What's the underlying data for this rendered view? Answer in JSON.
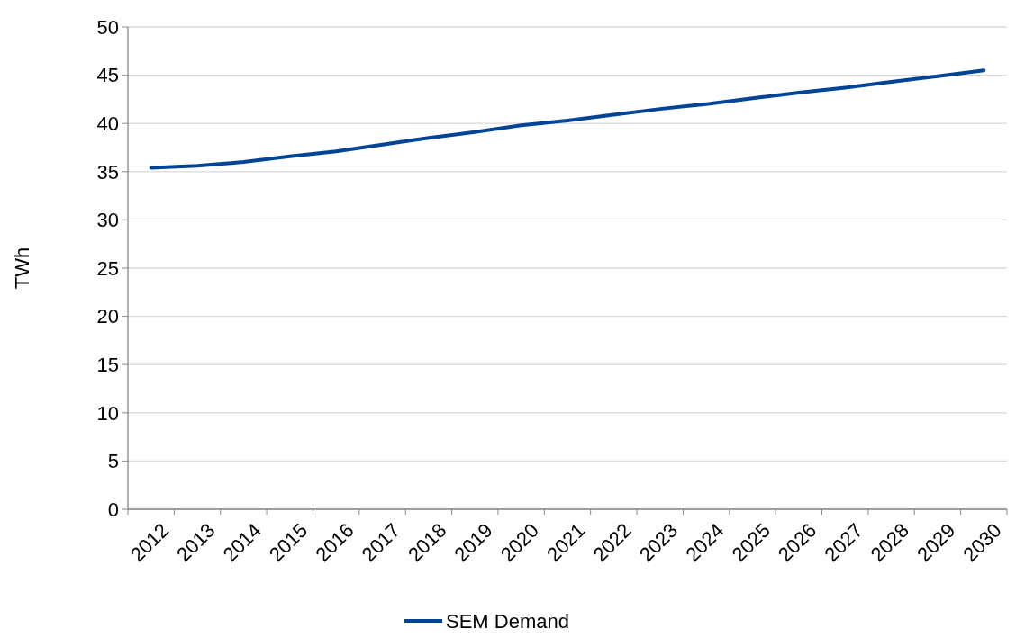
{
  "chart_data": {
    "type": "line",
    "ylabel": "TWh",
    "categories": [
      "2012",
      "2013",
      "2014",
      "2015",
      "2016",
      "2017",
      "2018",
      "2019",
      "2020",
      "2021",
      "2022",
      "2023",
      "2024",
      "2025",
      "2026",
      "2027",
      "2028",
      "2029",
      "2030"
    ],
    "series": [
      {
        "name": "SEM Demand",
        "color": "#004595",
        "values": [
          35.4,
          35.6,
          36.0,
          36.6,
          37.1,
          37.8,
          38.5,
          39.1,
          39.8,
          40.3,
          40.9,
          41.5,
          42.0,
          42.6,
          43.2,
          43.7,
          44.3,
          44.9,
          45.5
        ]
      }
    ],
    "ylim": [
      0,
      50
    ],
    "yticks": [
      0,
      5,
      10,
      15,
      20,
      25,
      30,
      35,
      40,
      45,
      50
    ],
    "grid": "y",
    "legend": "bottom",
    "marker": "none",
    "line_style": "solid"
  }
}
